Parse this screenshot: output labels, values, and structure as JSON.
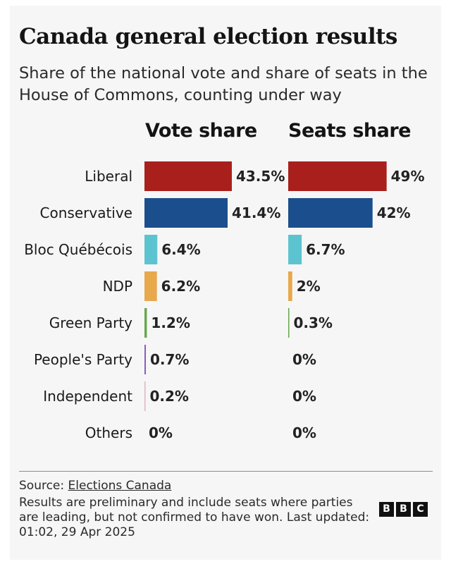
{
  "header": {
    "title": "Canada general election results",
    "subtitle": "Share of the national vote and share of seats in the House of Commons, counting under way"
  },
  "footer": {
    "source_prefix": "Source: ",
    "source_link": "Elections Canada",
    "note": "Results are preliminary and include seats where parties are leading, but not confirmed to have won. Last updated: 01:02, 29 Apr 2025",
    "logo_letters": [
      "B",
      "B",
      "C"
    ]
  },
  "chart_data": {
    "type": "bar",
    "orientation": "horizontal",
    "title": "Canada general election results",
    "subtitle": "Share of the national vote and share of seats in the House of Commons, counting under way",
    "categories": [
      "Liberal",
      "Conservative",
      "Bloc Québécois",
      "NDP",
      "Green Party",
      "People's Party",
      "Independent",
      "Others"
    ],
    "colors": [
      "#a91f1b",
      "#1b4e8c",
      "#5cc4d0",
      "#e8a84c",
      "#66a64e",
      "#8a5cc0",
      "#e0b3c3",
      "#9b9b9b"
    ],
    "xlim": [
      0,
      100
    ],
    "series": [
      {
        "name": "Vote share",
        "values": [
          43.5,
          41.4,
          6.4,
          6.2,
          1.2,
          0.7,
          0.2,
          0
        ],
        "labels": [
          "43.5%",
          "41.4%",
          "6.4%",
          "6.2%",
          "1.2%",
          "0.7%",
          "0.2%",
          "0%"
        ]
      },
      {
        "name": "Seats share",
        "values": [
          49,
          42,
          6.7,
          2,
          0.3,
          0,
          0,
          0
        ],
        "labels": [
          "49%",
          "42%",
          "6.7%",
          "2%",
          "0.3%",
          "0%",
          "0%",
          "0%"
        ]
      }
    ]
  }
}
